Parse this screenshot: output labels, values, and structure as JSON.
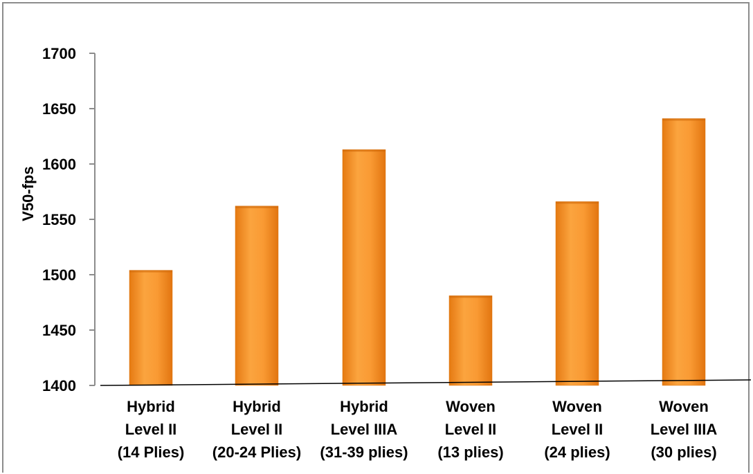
{
  "chart_data": {
    "type": "bar",
    "ylabel": "V50-fps",
    "xlabel": "",
    "ylim": [
      1400,
      1700
    ],
    "yticks": [
      1400,
      1450,
      1500,
      1550,
      1600,
      1650,
      1700
    ],
    "categories": [
      [
        "Hybrid",
        "Level II",
        "(14 Plies)"
      ],
      [
        "Hybrid",
        "Level II",
        "(20-24 Plies)"
      ],
      [
        "Hybrid",
        "Level IIIA",
        "(31-39 plies)"
      ],
      [
        "Woven",
        "Level II",
        "(13 plies)"
      ],
      [
        "Woven",
        "Level II",
        "(24 plies)"
      ],
      [
        "Woven",
        "Level IIIA",
        "(30 plies)"
      ]
    ],
    "values": [
      1504,
      1562,
      1613,
      1481,
      1566,
      1641
    ],
    "bar_color": "#f7922a",
    "grid": false,
    "legend": "none"
  }
}
